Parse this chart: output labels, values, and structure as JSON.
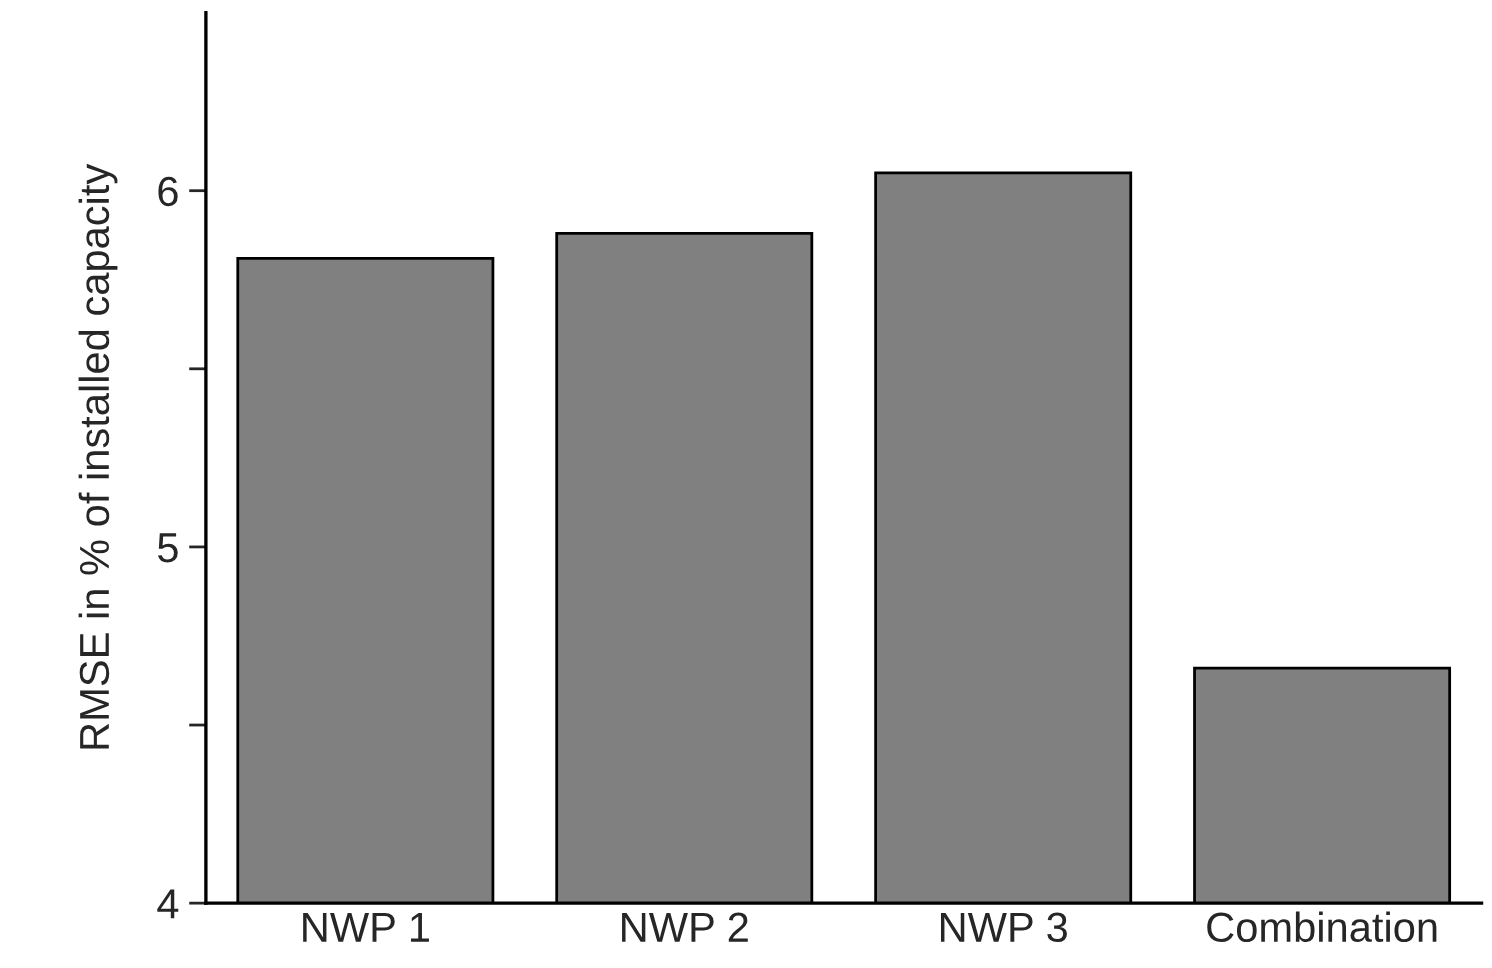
{
  "chart_data": {
    "type": "bar",
    "ylabel": "RMSE in % of installed capacity",
    "categories": [
      "NWP 1",
      "NWP 2",
      "NWP 3",
      "Combination"
    ],
    "values": [
      5.81,
      5.88,
      6.05,
      4.66
    ],
    "color": "#808080",
    "ylim": [
      4,
      6.5
    ],
    "yticks": [
      4,
      {
        "value": 4.5,
        "label": null
      },
      5,
      {
        "value": 5.5,
        "label": null
      },
      6
    ],
    "grid": false,
    "legend": false
  }
}
